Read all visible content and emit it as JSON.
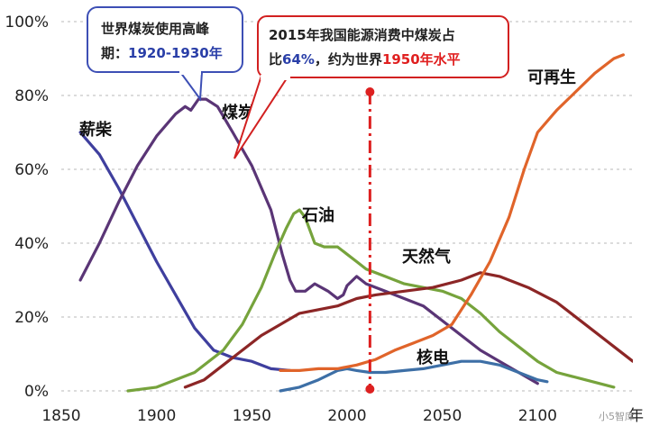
{
  "chart_data": {
    "type": "line",
    "xlim": [
      1850,
      2150
    ],
    "ylim": [
      0,
      100
    ],
    "x_ticks": [
      "1850",
      "1900",
      "1950",
      "2000",
      "2050",
      "2100"
    ],
    "x_unit_label": "年",
    "y_ticks": [
      "0%",
      "20%",
      "40%",
      "60%",
      "80%",
      "100%"
    ],
    "grid": "dashed horizontal",
    "series": [
      {
        "name": "薪柴",
        "color": "#3f3f9e",
        "points": [
          [
            1860,
            70
          ],
          [
            1870,
            64
          ],
          [
            1880,
            55
          ],
          [
            1890,
            45
          ],
          [
            1900,
            35
          ],
          [
            1910,
            26
          ],
          [
            1920,
            17
          ],
          [
            1930,
            11
          ],
          [
            1940,
            9
          ],
          [
            1950,
            8
          ],
          [
            1960,
            6
          ],
          [
            1970,
            5.5
          ]
        ]
      },
      {
        "name": "煤炭",
        "color": "#5a3576",
        "points": [
          [
            1860,
            30
          ],
          [
            1870,
            40
          ],
          [
            1880,
            51
          ],
          [
            1890,
            61
          ],
          [
            1900,
            69
          ],
          [
            1910,
            75
          ],
          [
            1915,
            77
          ],
          [
            1918,
            76
          ],
          [
            1922,
            79
          ],
          [
            1926,
            79
          ],
          [
            1932,
            77
          ],
          [
            1940,
            70
          ],
          [
            1950,
            61
          ],
          [
            1960,
            49
          ],
          [
            1966,
            37
          ],
          [
            1970,
            30
          ],
          [
            1973,
            27
          ],
          [
            1978,
            27
          ],
          [
            1983,
            29
          ],
          [
            1990,
            27
          ],
          [
            1995,
            25
          ],
          [
            1998,
            26
          ],
          [
            2000,
            28.5
          ],
          [
            2005,
            31
          ],
          [
            2010,
            29
          ],
          [
            2020,
            27
          ],
          [
            2030,
            25
          ],
          [
            2040,
            23
          ],
          [
            2050,
            19
          ],
          [
            2060,
            15
          ],
          [
            2070,
            11
          ],
          [
            2080,
            8
          ],
          [
            2090,
            5
          ],
          [
            2100,
            2
          ]
        ]
      },
      {
        "name": "石油",
        "color": "#76a33c",
        "points": [
          [
            1885,
            0
          ],
          [
            1900,
            1
          ],
          [
            1920,
            5
          ],
          [
            1935,
            11
          ],
          [
            1945,
            18
          ],
          [
            1955,
            28
          ],
          [
            1962,
            37
          ],
          [
            1968,
            44
          ],
          [
            1972,
            48
          ],
          [
            1975,
            49
          ],
          [
            1978,
            47
          ],
          [
            1983,
            40
          ],
          [
            1988,
            39
          ],
          [
            1995,
            39
          ],
          [
            2000,
            37
          ],
          [
            2005,
            35
          ],
          [
            2010,
            33
          ],
          [
            2020,
            31
          ],
          [
            2030,
            29
          ],
          [
            2040,
            28
          ],
          [
            2050,
            27
          ],
          [
            2060,
            25
          ],
          [
            2070,
            21
          ],
          [
            2080,
            16
          ],
          [
            2090,
            12
          ],
          [
            2100,
            8
          ],
          [
            2110,
            5
          ],
          [
            2125,
            3
          ],
          [
            2140,
            1
          ]
        ]
      },
      {
        "name": "天然气",
        "color": "#8c2626",
        "points": [
          [
            1915,
            1
          ],
          [
            1925,
            3
          ],
          [
            1935,
            7
          ],
          [
            1945,
            11
          ],
          [
            1955,
            15
          ],
          [
            1965,
            18
          ],
          [
            1975,
            21
          ],
          [
            1985,
            22
          ],
          [
            1995,
            23
          ],
          [
            2005,
            25
          ],
          [
            2015,
            26
          ],
          [
            2030,
            27
          ],
          [
            2045,
            28
          ],
          [
            2060,
            30
          ],
          [
            2070,
            32
          ],
          [
            2080,
            31
          ],
          [
            2095,
            28
          ],
          [
            2110,
            24
          ],
          [
            2125,
            18
          ],
          [
            2140,
            12
          ],
          [
            2150,
            8
          ]
        ]
      },
      {
        "name": "核电",
        "color": "#3d6fa6",
        "points": [
          [
            1965,
            0
          ],
          [
            1975,
            1
          ],
          [
            1985,
            3
          ],
          [
            1995,
            5.5
          ],
          [
            2000,
            6
          ],
          [
            2005,
            5.5
          ],
          [
            2012,
            5
          ],
          [
            2020,
            5
          ],
          [
            2030,
            5.5
          ],
          [
            2040,
            6
          ],
          [
            2050,
            7
          ],
          [
            2060,
            8
          ],
          [
            2070,
            8
          ],
          [
            2080,
            7
          ],
          [
            2090,
            5
          ],
          [
            2100,
            3
          ],
          [
            2105,
            2.5
          ]
        ]
      },
      {
        "name": "可再生",
        "color": "#e0642a",
        "points": [
          [
            1965,
            5.5
          ],
          [
            1975,
            5.5
          ],
          [
            1985,
            6
          ],
          [
            1995,
            6
          ],
          [
            2005,
            7
          ],
          [
            2015,
            8.5
          ],
          [
            2025,
            11
          ],
          [
            2035,
            13
          ],
          [
            2045,
            15
          ],
          [
            2055,
            18
          ],
          [
            2065,
            26
          ],
          [
            2075,
            35
          ],
          [
            2085,
            47
          ],
          [
            2093,
            60
          ],
          [
            2100,
            70
          ],
          [
            2110,
            76
          ],
          [
            2120,
            81
          ],
          [
            2130,
            86
          ],
          [
            2140,
            90
          ],
          [
            2145,
            91
          ]
        ]
      }
    ],
    "reference_line": {
      "x": 2012,
      "color": "#dd2020"
    },
    "annotations": [
      {
        "lines": [
          "世界煤炭使用高峰",
          "期：1920-1930年"
        ],
        "highlight": "1920-1930年",
        "border": "#3d4fb5",
        "points_to": [
          1922,
          79
        ]
      },
      {
        "lines": [
          "2015年我国能源消费中煤炭占",
          "比64%，约为世界1950年水平"
        ],
        "highlights": [
          "64%",
          "1950年水平"
        ],
        "border": "#d22020",
        "points_to": [
          1944,
          64
        ]
      }
    ]
  },
  "labels": {
    "firewood": "薪柴",
    "coal": "煤炭",
    "oil": "石油",
    "gas": "天然气",
    "nuclear": "核电",
    "renewable": "可再生",
    "year_unit": "年"
  },
  "callout1": {
    "line1": "世界煤炭使用高峰",
    "line2_prefix": "期：",
    "line2_highlight": "1920-1930年"
  },
  "callout2": {
    "line1": "2015年我国能源消费中煤炭占",
    "line2_a": "比",
    "line2_b": "64%",
    "line2_c": "，约为世界",
    "line2_d": "1950年水平"
  },
  "watermark": "小5智库",
  "colors": {
    "callout_blue_text": "#2a3fa8",
    "callout_red_text": "#e02020",
    "grid": "#b8b8b8"
  }
}
